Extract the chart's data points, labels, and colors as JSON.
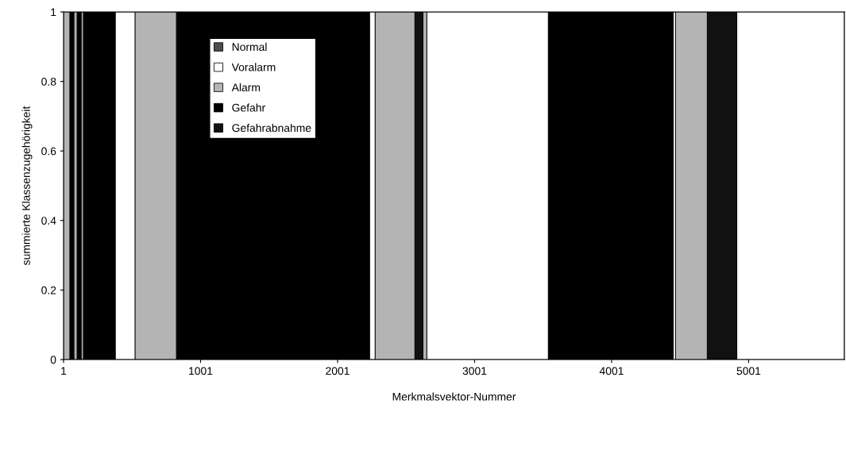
{
  "chart_data": {
    "type": "area",
    "xlabel": "Merkmalsvektor-Nummer",
    "ylabel": "summierte Klassenzugehörigkeit",
    "x": [
      1,
      47,
      48,
      76,
      77,
      100,
      101,
      129,
      130,
      146,
      147,
      378,
      379,
      523,
      524,
      825,
      826,
      2234,
      2235,
      2275,
      2276,
      2565,
      2566,
      2623,
      2624,
      2652,
      2653,
      3539,
      3540,
      4450,
      4451,
      4467,
      4468,
      4699,
      4700,
      4914,
      4915,
      5700
    ],
    "series": [
      {
        "name": "Normal",
        "color": "#4d4d4d",
        "values": [
          null,
          null,
          null,
          null,
          null,
          null,
          null,
          null,
          null,
          null,
          null,
          null,
          null,
          null,
          null,
          null,
          null,
          null,
          null,
          null,
          null,
          null,
          null,
          null,
          null,
          null,
          null,
          null,
          null,
          null,
          null,
          null,
          null,
          null,
          null,
          null,
          null,
          null
        ]
      },
      {
        "name": "Voralarm",
        "color": "#ffffff",
        "values": [
          null,
          null,
          null,
          null,
          null,
          null,
          null,
          null,
          null,
          null,
          null,
          null,
          1,
          1,
          null,
          null,
          null,
          null,
          1,
          1,
          null,
          null,
          null,
          null,
          null,
          null,
          1,
          1,
          null,
          null,
          1,
          1,
          null,
          null,
          null,
          null,
          1,
          1
        ]
      },
      {
        "name": "Alarm",
        "color": "#b4b4b4",
        "values": [
          1,
          1,
          null,
          null,
          1,
          1,
          null,
          null,
          1,
          1,
          null,
          null,
          null,
          null,
          1,
          1,
          null,
          null,
          null,
          null,
          1,
          1,
          null,
          null,
          1,
          1,
          null,
          null,
          null,
          null,
          null,
          null,
          1,
          1,
          null,
          null,
          null,
          null
        ]
      },
      {
        "name": "Gefahr",
        "color": "#000000",
        "values": [
          null,
          null,
          1,
          1,
          null,
          null,
          1,
          1,
          null,
          null,
          1,
          1,
          null,
          null,
          null,
          null,
          1,
          1,
          null,
          null,
          null,
          null,
          null,
          null,
          null,
          null,
          null,
          null,
          1,
          1,
          null,
          null,
          null,
          null,
          null,
          null,
          null,
          null
        ]
      },
      {
        "name": "Gefahrabnahme",
        "color": "#111111",
        "values": [
          null,
          null,
          null,
          null,
          null,
          null,
          null,
          null,
          null,
          null,
          null,
          null,
          null,
          null,
          null,
          null,
          null,
          null,
          null,
          null,
          null,
          null,
          1,
          1,
          null,
          null,
          null,
          null,
          null,
          null,
          null,
          null,
          null,
          null,
          1,
          1,
          null,
          null
        ]
      }
    ],
    "xlim": [
      1,
      5700
    ],
    "xticks": [
      1,
      1001,
      2001,
      3001,
      4001,
      5001
    ],
    "ylim": [
      0,
      1
    ],
    "yticks": [
      0,
      0.2,
      0.4,
      0.6,
      0.8,
      1
    ],
    "grid": false,
    "legend": "top left"
  }
}
